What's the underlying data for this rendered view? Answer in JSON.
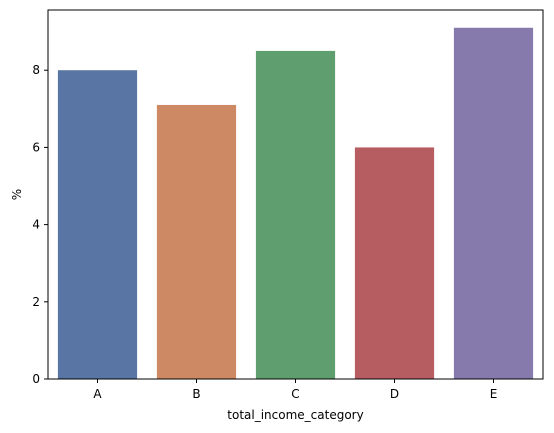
{
  "chart_data": {
    "type": "bar",
    "title": "",
    "xlabel": "total_income_category",
    "ylabel": "%",
    "categories": [
      "A",
      "B",
      "C",
      "D",
      "E"
    ],
    "values": [
      8.0,
      7.1,
      8.5,
      6.0,
      9.1
    ],
    "colors": [
      "#5975a4",
      "#cc8963",
      "#5f9e6e",
      "#b55d60",
      "#857aab"
    ],
    "ylim": [
      0,
      9.56
    ],
    "yticks": [
      0,
      2,
      4,
      6,
      8
    ],
    "grid": false,
    "legend": "none"
  }
}
